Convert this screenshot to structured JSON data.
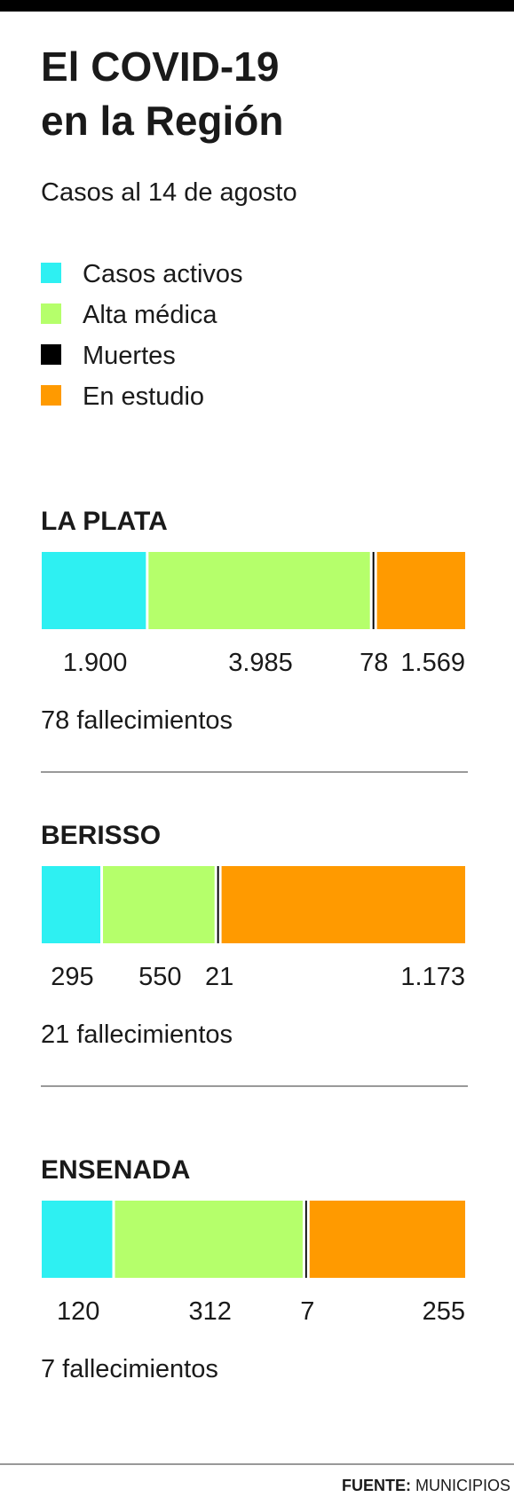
{
  "header": {
    "title_lines": [
      "El COVID-19",
      "en la Región"
    ],
    "subtitle": "Casos al 14 de agosto"
  },
  "chart_data": [
    {
      "type": "bar",
      "stacked": true,
      "orientation": "horizontal",
      "title": "LA PLATA",
      "series": [
        {
          "name": "Casos activos",
          "color": "#2ef0f2",
          "values": [
            1900
          ],
          "value_labels": [
            "1.900"
          ]
        },
        {
          "name": "Alta médica",
          "color": "#b5ff6b",
          "values": [
            3985
          ],
          "value_labels": [
            "3.985"
          ]
        },
        {
          "name": "Muertes",
          "color": "#000000",
          "values": [
            78
          ],
          "value_labels": [
            "78"
          ]
        },
        {
          "name": "En estudio",
          "color": "#ff9a00",
          "values": [
            1569
          ],
          "value_labels": [
            "1.569"
          ]
        }
      ],
      "note": "78 fallecimientos"
    },
    {
      "type": "bar",
      "stacked": true,
      "orientation": "horizontal",
      "title": "BERISSO",
      "series": [
        {
          "color": "#2ef0f2",
          "values": [
            295
          ]
        },
        {
          "color": "#b5ff6b",
          "values": [
            550
          ]
        },
        {
          "color": "#000000",
          "values": [
            21
          ]
        },
        {
          "color": "#ff9a00",
          "values": [
            1173
          ],
          "value_labels": [
            "1.173"
          ]
        }
      ],
      "note": "21 fallecimientos"
    },
    {
      "type": "bar",
      "stacked": true,
      "orientation": "horizontal",
      "title": "ENSENADA",
      "series": [
        {
          "color": "#2ef0f2",
          "values": [
            120
          ]
        },
        {
          "color": "#b5ff6b",
          "values": [
            312
          ]
        },
        {
          "color": "#000000",
          "values": [
            7
          ]
        },
        {
          "color": "#ff9a00",
          "values": [
            255
          ]
        }
      ],
      "note": "7 fallecimientos"
    }
  ],
  "source": {
    "label": "FUENTE:",
    "text": "MUNICIPIOS"
  }
}
